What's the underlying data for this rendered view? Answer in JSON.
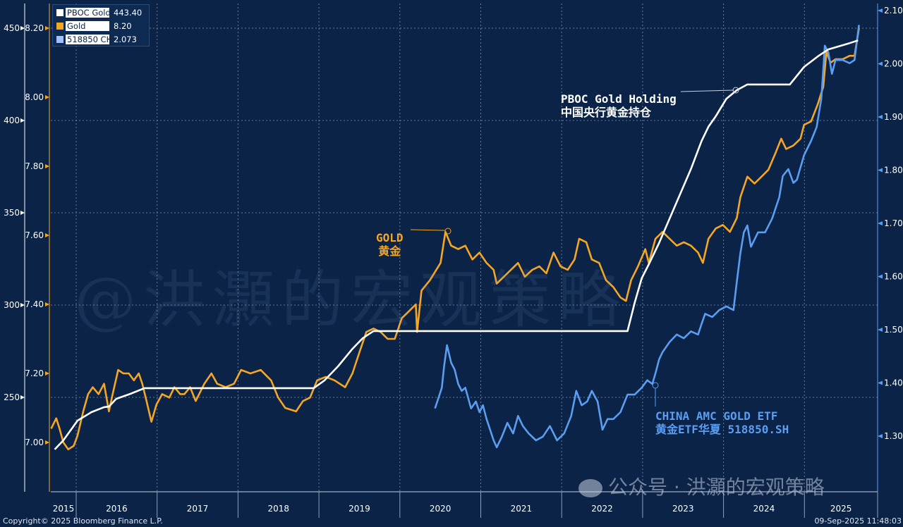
{
  "chart_data": {
    "type": "line",
    "x_axis": {
      "type": "date",
      "tick_labels": [
        "2015",
        "2016",
        "2017",
        "2018",
        "2019",
        "2020",
        "2021",
        "2022",
        "2023",
        "2024",
        "2025"
      ]
    },
    "axes": {
      "left_outer": {
        "series": "PBOC Gold",
        "ticks": [
          450,
          400,
          350,
          300,
          250
        ],
        "range": [
          200,
          450
        ]
      },
      "left_inner": {
        "series": "Gold",
        "ticks": [
          "8.20",
          "8.00",
          "7.80",
          "7.60",
          "7.40",
          "7.20",
          "7.00"
        ],
        "range": [
          6.88,
          8.2
        ]
      },
      "right": {
        "series": "518850 CH",
        "ticks": [
          "2.10",
          "2.00",
          "1.90",
          "1.80",
          "1.70",
          "1.60",
          "1.50",
          "1.40",
          "1.30"
        ],
        "range": [
          1.21,
          2.1
        ]
      }
    },
    "grid": true,
    "legend": {
      "position": "top-left",
      "items": [
        {
          "name": "PBOC Gold",
          "value": "443.40",
          "color": "#ffffff"
        },
        {
          "name": "Gold",
          "value": "8.20",
          "color": "#f5a623"
        },
        {
          "name": "518850 CH",
          "value": "2.073",
          "color": "#9cc3ff"
        }
      ]
    },
    "series": [
      {
        "name": "PBOC Gold",
        "axis": "left_outer",
        "color": "#ffffff",
        "points": [
          [
            "2015-09-26",
            221.8
          ],
          [
            "2015-11-04",
            226.7
          ],
          [
            "2016-01-07",
            237.4
          ],
          [
            "2016-03-10",
            242.0
          ],
          [
            "2016-05-06",
            244.7
          ],
          [
            "2016-05-28",
            245.0
          ],
          [
            "2016-06-30",
            249.2
          ],
          [
            "2016-09-02",
            251.9
          ],
          [
            "2016-11-05",
            255.0
          ],
          [
            "2018-12-08",
            255.0
          ],
          [
            "2019-01-26",
            259.2
          ],
          [
            "2019-03-28",
            266.8
          ],
          [
            "2019-06-01",
            276.3
          ],
          [
            "2019-07-18",
            282.1
          ],
          [
            "2019-09-04",
            285.9
          ],
          [
            "2022-10-25",
            285.9
          ],
          [
            "2022-11-26",
            301.2
          ],
          [
            "2022-12-28",
            314.5
          ],
          [
            "2023-01-29",
            322.1
          ],
          [
            "2023-03-16",
            333.6
          ],
          [
            "2023-05-03",
            346.9
          ],
          [
            "2023-06-20",
            360.3
          ],
          [
            "2023-08-07",
            373.7
          ],
          [
            "2023-09-24",
            388.9
          ],
          [
            "2023-10-25",
            396.6
          ],
          [
            "2023-11-27",
            402.3
          ],
          [
            "2024-01-14",
            411.8
          ],
          [
            "2024-03-01",
            416.4
          ],
          [
            "2024-04-18",
            419.5
          ],
          [
            "2024-10-27",
            419.5
          ],
          [
            "2024-12-30",
            429.0
          ],
          [
            "2025-03-02",
            434.7
          ],
          [
            "2025-04-19",
            438.5
          ],
          [
            "2025-07-24",
            441.9
          ],
          [
            "2025-08-31",
            443.4
          ]
        ]
      },
      {
        "name": "Gold",
        "axis": "left_inner",
        "color": "#f5a623",
        "points": [
          [
            "2015-09-10",
            7.04
          ],
          [
            "2015-10-03",
            7.07
          ],
          [
            "2015-10-18",
            7.04
          ],
          [
            "2015-11-04",
            7.0
          ],
          [
            "2015-11-26",
            6.98
          ],
          [
            "2015-12-21",
            6.99
          ],
          [
            "2016-01-07",
            7.02
          ],
          [
            "2016-02-02",
            7.09
          ],
          [
            "2016-02-24",
            7.14
          ],
          [
            "2016-03-16",
            7.16
          ],
          [
            "2016-04-11",
            7.14
          ],
          [
            "2016-05-06",
            7.17
          ],
          [
            "2016-05-28",
            7.09
          ],
          [
            "2016-06-14",
            7.14
          ],
          [
            "2016-07-09",
            7.21
          ],
          [
            "2016-08-01",
            7.2
          ],
          [
            "2016-08-26",
            7.2
          ],
          [
            "2016-09-18",
            7.18
          ],
          [
            "2016-10-10",
            7.2
          ],
          [
            "2016-10-26",
            7.17
          ],
          [
            "2016-11-14",
            7.12
          ],
          [
            "2016-12-06",
            7.06
          ],
          [
            "2016-12-29",
            7.11
          ],
          [
            "2017-01-24",
            7.14
          ],
          [
            "2017-02-25",
            7.13
          ],
          [
            "2017-03-20",
            7.16
          ],
          [
            "2017-04-15",
            7.14
          ],
          [
            "2017-05-04",
            7.14
          ],
          [
            "2017-05-30",
            7.16
          ],
          [
            "2017-06-24",
            7.12
          ],
          [
            "2017-08-02",
            7.17
          ],
          [
            "2017-09-03",
            7.2
          ],
          [
            "2017-09-29",
            7.17
          ],
          [
            "2017-11-06",
            7.16
          ],
          [
            "2017-12-14",
            7.17
          ],
          [
            "2018-01-15",
            7.21
          ],
          [
            "2018-02-26",
            7.2
          ],
          [
            "2018-04-13",
            7.21
          ],
          [
            "2018-05-30",
            7.18
          ],
          [
            "2018-07-01",
            7.13
          ],
          [
            "2018-08-02",
            7.1
          ],
          [
            "2018-09-20",
            7.09
          ],
          [
            "2018-10-21",
            7.12
          ],
          [
            "2018-11-22",
            7.13
          ],
          [
            "2018-12-24",
            7.18
          ],
          [
            "2019-02-01",
            7.19
          ],
          [
            "2019-03-12",
            7.18
          ],
          [
            "2019-04-29",
            7.16
          ],
          [
            "2019-06-01",
            7.2
          ],
          [
            "2019-07-02",
            7.26
          ],
          [
            "2019-08-03",
            7.32
          ],
          [
            "2019-09-04",
            7.33
          ],
          [
            "2019-10-06",
            7.32
          ],
          [
            "2019-11-07",
            7.3
          ],
          [
            "2019-12-09",
            7.3
          ],
          [
            "2020-01-10",
            7.36
          ],
          [
            "2020-02-11",
            7.38
          ],
          [
            "2020-03-13",
            7.4
          ],
          [
            "2020-03-19",
            7.32
          ],
          [
            "2020-04-08",
            7.44
          ],
          [
            "2020-05-16",
            7.47
          ],
          [
            "2020-07-03",
            7.52
          ],
          [
            "2020-07-25",
            7.61
          ],
          [
            "2020-08-20",
            7.57
          ],
          [
            "2020-09-21",
            7.56
          ],
          [
            "2020-10-23",
            7.57
          ],
          [
            "2020-11-24",
            7.53
          ],
          [
            "2020-12-26",
            7.55
          ],
          [
            "2021-01-27",
            7.52
          ],
          [
            "2021-02-28",
            7.5
          ],
          [
            "2021-03-14",
            7.46
          ],
          [
            "2021-04-15",
            7.48
          ],
          [
            "2021-05-17",
            7.5
          ],
          [
            "2021-06-18",
            7.52
          ],
          [
            "2021-07-19",
            7.48
          ],
          [
            "2021-08-21",
            7.5
          ],
          [
            "2021-09-22",
            7.51
          ],
          [
            "2021-10-24",
            7.49
          ],
          [
            "2021-11-25",
            7.55
          ],
          [
            "2021-12-27",
            7.51
          ],
          [
            "2022-01-28",
            7.5
          ],
          [
            "2022-02-28",
            7.53
          ],
          [
            "2022-03-21",
            7.59
          ],
          [
            "2022-04-22",
            7.58
          ],
          [
            "2022-05-17",
            7.53
          ],
          [
            "2022-06-19",
            7.52
          ],
          [
            "2022-07-20",
            7.47
          ],
          [
            "2022-08-22",
            7.45
          ],
          [
            "2022-09-23",
            7.42
          ],
          [
            "2022-10-18",
            7.41
          ],
          [
            "2022-11-10",
            7.47
          ],
          [
            "2022-12-11",
            7.51
          ],
          [
            "2023-01-13",
            7.56
          ],
          [
            "2023-01-29",
            7.52
          ],
          [
            "2023-02-28",
            7.59
          ],
          [
            "2023-04-01",
            7.61
          ],
          [
            "2023-05-03",
            7.59
          ],
          [
            "2023-06-04",
            7.57
          ],
          [
            "2023-07-06",
            7.58
          ],
          [
            "2023-08-07",
            7.57
          ],
          [
            "2023-09-08",
            7.55
          ],
          [
            "2023-09-30",
            7.52
          ],
          [
            "2023-10-25",
            7.59
          ],
          [
            "2023-11-27",
            7.62
          ],
          [
            "2023-12-29",
            7.63
          ],
          [
            "2024-01-30",
            7.61
          ],
          [
            "2024-03-01",
            7.65
          ],
          [
            "2024-03-17",
            7.71
          ],
          [
            "2024-04-18",
            7.77
          ],
          [
            "2024-05-20",
            7.75
          ],
          [
            "2024-06-21",
            7.77
          ],
          [
            "2024-07-22",
            7.79
          ],
          [
            "2024-08-24",
            7.84
          ],
          [
            "2024-09-18",
            7.88
          ],
          [
            "2024-10-10",
            7.85
          ],
          [
            "2024-11-12",
            7.86
          ],
          [
            "2024-12-14",
            7.88
          ],
          [
            "2024-12-30",
            7.92
          ],
          [
            "2025-01-31",
            7.93
          ],
          [
            "2025-03-02",
            7.98
          ],
          [
            "2025-03-27",
            8.03
          ],
          [
            "2025-04-10",
            8.13
          ],
          [
            "2025-04-29",
            8.1
          ],
          [
            "2025-05-21",
            8.11
          ],
          [
            "2025-06-22",
            8.11
          ],
          [
            "2025-07-24",
            8.12
          ],
          [
            "2025-08-15",
            8.12
          ],
          [
            "2025-09-04",
            8.2
          ]
        ]
      },
      {
        "name": "518850 CH",
        "axis": "right",
        "color": "#5b9df0",
        "points": [
          [
            "2020-06-08",
            1.352
          ],
          [
            "2020-06-24",
            1.372
          ],
          [
            "2020-07-09",
            1.391
          ],
          [
            "2020-07-19",
            1.431
          ],
          [
            "2020-08-01",
            1.471
          ],
          [
            "2020-08-20",
            1.438
          ],
          [
            "2020-09-05",
            1.425
          ],
          [
            "2020-09-21",
            1.398
          ],
          [
            "2020-10-07",
            1.385
          ],
          [
            "2020-10-23",
            1.391
          ],
          [
            "2020-11-18",
            1.352
          ],
          [
            "2020-12-10",
            1.365
          ],
          [
            "2020-12-26",
            1.345
          ],
          [
            "2021-01-11",
            1.358
          ],
          [
            "2021-01-27",
            1.332
          ],
          [
            "2021-02-12",
            1.312
          ],
          [
            "2021-02-28",
            1.292
          ],
          [
            "2021-03-14",
            1.279
          ],
          [
            "2021-04-06",
            1.299
          ],
          [
            "2021-05-01",
            1.325
          ],
          [
            "2021-05-27",
            1.305
          ],
          [
            "2021-06-18",
            1.338
          ],
          [
            "2021-07-10",
            1.319
          ],
          [
            "2021-08-05",
            1.305
          ],
          [
            "2021-09-07",
            1.292
          ],
          [
            "2021-10-08",
            1.299
          ],
          [
            "2021-11-09",
            1.319
          ],
          [
            "2021-12-11",
            1.292
          ],
          [
            "2022-01-12",
            1.305
          ],
          [
            "2022-02-13",
            1.338
          ],
          [
            "2022-03-08",
            1.385
          ],
          [
            "2022-04-01",
            1.358
          ],
          [
            "2022-04-26",
            1.365
          ],
          [
            "2022-05-17",
            1.385
          ],
          [
            "2022-06-12",
            1.365
          ],
          [
            "2022-07-04",
            1.312
          ],
          [
            "2022-07-27",
            1.332
          ],
          [
            "2022-08-22",
            1.332
          ],
          [
            "2022-09-23",
            1.345
          ],
          [
            "2022-10-25",
            1.378
          ],
          [
            "2022-11-26",
            1.378
          ],
          [
            "2022-12-28",
            1.391
          ],
          [
            "2023-01-22",
            1.405
          ],
          [
            "2023-02-14",
            1.398
          ],
          [
            "2023-02-28",
            1.418
          ],
          [
            "2023-03-16",
            1.444
          ],
          [
            "2023-04-01",
            1.458
          ],
          [
            "2023-05-03",
            1.477
          ],
          [
            "2023-06-04",
            1.491
          ],
          [
            "2023-07-06",
            1.484
          ],
          [
            "2023-08-07",
            1.497
          ],
          [
            "2023-09-08",
            1.491
          ],
          [
            "2023-09-24",
            1.511
          ],
          [
            "2023-10-10",
            1.53
          ],
          [
            "2023-11-11",
            1.524
          ],
          [
            "2023-12-13",
            1.537
          ],
          [
            "2024-01-14",
            1.544
          ],
          [
            "2024-02-15",
            1.537
          ],
          [
            "2024-03-01",
            1.59
          ],
          [
            "2024-03-17",
            1.643
          ],
          [
            "2024-04-02",
            1.683
          ],
          [
            "2024-04-18",
            1.696
          ],
          [
            "2024-05-04",
            1.656
          ],
          [
            "2024-06-05",
            1.683
          ],
          [
            "2024-07-07",
            1.683
          ],
          [
            "2024-08-08",
            1.709
          ],
          [
            "2024-09-09",
            1.749
          ],
          [
            "2024-09-25",
            1.789
          ],
          [
            "2024-10-20",
            1.802
          ],
          [
            "2024-11-12",
            1.776
          ],
          [
            "2024-11-28",
            1.782
          ],
          [
            "2024-12-30",
            1.828
          ],
          [
            "2025-01-31",
            1.855
          ],
          [
            "2025-02-25",
            1.881
          ],
          [
            "2025-03-18",
            1.934
          ],
          [
            "2025-04-03",
            2.034
          ],
          [
            "2025-04-19",
            2.021
          ],
          [
            "2025-05-05",
            1.981
          ],
          [
            "2025-05-21",
            2.007
          ],
          [
            "2025-06-22",
            2.007
          ],
          [
            "2025-07-24",
            2.001
          ],
          [
            "2025-08-15",
            2.007
          ],
          [
            "2025-09-04",
            2.073
          ]
        ]
      }
    ],
    "annotations": {
      "pboc": {
        "line1": "PBOC Gold Holding",
        "line2": "中国央行黄金持仓"
      },
      "gold": {
        "line1": "GOLD",
        "line2": "黄金"
      },
      "etf": {
        "line1": "CHINA AMC GOLD ETF",
        "line2": "黄金ETF华夏 518850.SH"
      }
    }
  },
  "footer": {
    "copyright": "Copyright© 2025 Bloomberg Finance L.P.",
    "timestamp": "09-Sep-2025 11:48:03"
  },
  "watermark": {
    "main": "@洪灝的宏观策略",
    "account": "公众号 · 洪灝的宏观策略"
  },
  "colors": {
    "background": "#0a2347",
    "pboc": "#ffffff",
    "gold": "#f5a623",
    "etf": "#5b9df0"
  }
}
